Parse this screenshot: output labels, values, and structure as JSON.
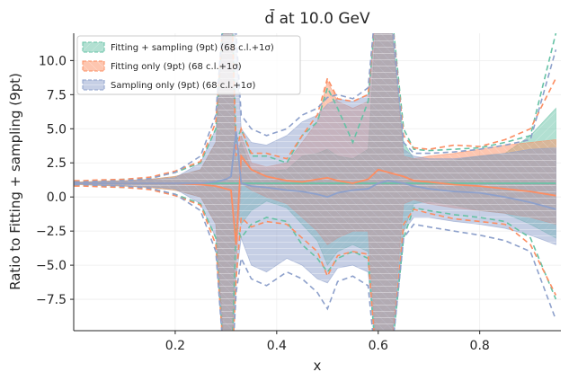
{
  "chart_data": {
    "type": "line",
    "title": "d̄ at 10.0 GeV",
    "xlabel": "x",
    "ylabel": "Ratio to Fitting + sampling (9pt)",
    "xlim": [
      0.0,
      0.96
    ],
    "ylim": [
      -9.8,
      12.0
    ],
    "xticks": [
      0.2,
      0.4,
      0.6,
      0.8
    ],
    "xtick_labels": [
      "0.2",
      "0.4",
      "0.6",
      "0.8"
    ],
    "yticks": [
      -7.5,
      -5.0,
      -2.5,
      0.0,
      2.5,
      5.0,
      7.5,
      10.0
    ],
    "ytick_labels": [
      "−7.5",
      "−5.0",
      "−2.5",
      "0.0",
      "2.5",
      "5.0",
      "7.5",
      "10.0"
    ],
    "grid": true,
    "legend_position": "top-left",
    "x": [
      0.001,
      0.02,
      0.05,
      0.1,
      0.15,
      0.2,
      0.25,
      0.28,
      0.3,
      0.31,
      0.32,
      0.33,
      0.35,
      0.38,
      0.42,
      0.45,
      0.48,
      0.5,
      0.52,
      0.55,
      0.58,
      0.6,
      0.62,
      0.65,
      0.67,
      0.7,
      0.75,
      0.8,
      0.85,
      0.9,
      0.95
    ],
    "series": [
      {
        "name": "Fitting + sampling (9pt) (68 c.l.+1σ)",
        "color": "#66c2a5",
        "central": [
          1.0,
          1.0,
          1.0,
          1.0,
          1.0,
          1.0,
          1.0,
          1.0,
          1.0,
          1.0,
          1.0,
          1.0,
          1.0,
          1.0,
          1.0,
          1.0,
          1.0,
          1.0,
          1.0,
          1.0,
          1.0,
          1.0,
          1.0,
          1.0,
          1.0,
          1.0,
          1.0,
          1.0,
          1.0,
          1.0,
          1.0
        ],
        "band_upper": [
          1.1,
          1.1,
          1.15,
          1.2,
          1.3,
          1.5,
          2.0,
          4.0,
          15.0,
          15.0,
          3.0,
          4.0,
          2.0,
          1.9,
          2.0,
          3.0,
          3.2,
          3.5,
          3.0,
          2.8,
          3.5,
          15.0,
          15.0,
          4.0,
          2.8,
          2.6,
          2.7,
          3.0,
          3.2,
          4.5,
          6.5
        ],
        "band_lower": [
          0.9,
          0.9,
          0.85,
          0.8,
          0.7,
          0.5,
          0.0,
          -2.0,
          -13.0,
          -13.0,
          -1.0,
          -2.0,
          -1.0,
          -0.3,
          -0.8,
          -2.0,
          -3.2,
          -5.0,
          -4.0,
          -3.5,
          -4.0,
          -13.0,
          -13.0,
          -2.5,
          -0.5,
          -0.3,
          -0.6,
          -1.0,
          -1.2,
          -2.0,
          -3.0
        ],
        "outer_upper": [
          1.15,
          1.15,
          1.2,
          1.3,
          1.4,
          1.8,
          2.5,
          5.0,
          16.0,
          16.0,
          4.0,
          5.0,
          3.0,
          3.0,
          2.5,
          4.5,
          5.5,
          8.0,
          6.5,
          4.0,
          7.0,
          16.0,
          16.0,
          5.0,
          3.5,
          3.4,
          3.5,
          3.6,
          4.0,
          4.5,
          12.0
        ],
        "outer_lower": [
          0.85,
          0.85,
          0.8,
          0.7,
          0.6,
          0.2,
          -0.5,
          -3.0,
          -14.0,
          -14.0,
          -2.0,
          -3.0,
          -2.0,
          -1.5,
          -1.8,
          -3.5,
          -4.5,
          -5.5,
          -4.5,
          -4.0,
          -4.5,
          -14.0,
          -14.0,
          -3.0,
          -0.8,
          -1.0,
          -1.3,
          -1.5,
          -1.8,
          -3.0,
          -7.5
        ]
      },
      {
        "name": "Fitting only (9pt) (68 c.l.+1σ)",
        "color": "#fc8d62",
        "central": [
          1.0,
          1.0,
          1.0,
          1.0,
          1.0,
          1.0,
          0.9,
          0.8,
          0.6,
          0.5,
          -3.5,
          3.0,
          2.0,
          1.5,
          1.2,
          1.1,
          1.3,
          1.4,
          1.2,
          1.0,
          1.3,
          2.0,
          1.8,
          1.5,
          1.2,
          1.1,
          0.9,
          0.8,
          0.6,
          0.4,
          0.1
        ],
        "band_upper": [
          1.1,
          1.1,
          1.15,
          1.2,
          1.3,
          1.5,
          2.0,
          4.0,
          15.0,
          15.0,
          2.0,
          4.5,
          2.5,
          2.2,
          2.5,
          4.0,
          5.5,
          8.5,
          7.0,
          6.5,
          7.0,
          15.0,
          15.0,
          3.0,
          2.8,
          3.0,
          3.2,
          3.5,
          3.8,
          4.0,
          4.2
        ],
        "band_lower": [
          0.9,
          0.9,
          0.85,
          0.8,
          0.7,
          0.5,
          0.0,
          -2.0,
          -13.0,
          -13.0,
          -5.0,
          1.0,
          0.5,
          0.0,
          -0.5,
          -1.5,
          -2.5,
          -3.5,
          -3.0,
          -2.5,
          -2.5,
          -13.0,
          -13.0,
          -0.5,
          -0.2,
          -0.5,
          -0.8,
          -1.0,
          -1.2,
          -1.5,
          -2.0
        ],
        "outer_upper": [
          1.2,
          1.2,
          1.25,
          1.3,
          1.45,
          1.9,
          2.6,
          5.5,
          16.0,
          16.0,
          3.0,
          5.0,
          3.2,
          3.2,
          2.8,
          4.5,
          6.0,
          8.7,
          7.2,
          7.0,
          7.5,
          16.0,
          16.0,
          4.5,
          3.6,
          3.5,
          3.8,
          3.7,
          4.2,
          5.0,
          8.7
        ],
        "outer_lower": [
          0.8,
          0.8,
          0.75,
          0.7,
          0.55,
          0.1,
          -0.6,
          -3.5,
          -14.0,
          -14.0,
          -6.0,
          -1.5,
          -2.2,
          -1.8,
          -2.0,
          -3.0,
          -4.0,
          -5.8,
          -4.3,
          -4.0,
          -4.2,
          -14.0,
          -14.0,
          -2.0,
          -0.9,
          -1.2,
          -1.6,
          -1.8,
          -2.0,
          -3.5,
          -7.2
        ]
      },
      {
        "name": "Sampling only (9pt) (68 c.l.+1σ)",
        "color": "#8da0cb",
        "central": [
          1.0,
          1.0,
          1.0,
          1.0,
          1.0,
          1.0,
          1.0,
          1.1,
          1.3,
          1.5,
          4.8,
          1.0,
          0.8,
          0.7,
          0.5,
          0.4,
          0.2,
          0.0,
          0.3,
          0.5,
          0.6,
          1.0,
          1.2,
          1.0,
          0.8,
          0.6,
          0.4,
          0.3,
          0.0,
          -0.4,
          -0.9
        ],
        "band_upper": [
          1.05,
          1.05,
          1.1,
          1.15,
          1.25,
          1.4,
          2.5,
          5.0,
          15.0,
          15.0,
          11.0,
          5.0,
          4.0,
          3.8,
          4.5,
          5.5,
          6.0,
          6.8,
          7.2,
          7.0,
          7.5,
          15.0,
          15.0,
          3.5,
          3.0,
          2.8,
          2.8,
          3.0,
          3.2,
          3.5,
          3.6
        ],
        "band_lower": [
          0.95,
          0.95,
          0.9,
          0.85,
          0.75,
          0.6,
          -0.5,
          -3.0,
          -13.0,
          -13.0,
          -6.0,
          -3.0,
          -5.0,
          -5.5,
          -4.5,
          -5.0,
          -6.0,
          -6.3,
          -5.2,
          -5.0,
          -5.5,
          -13.0,
          -13.0,
          -2.5,
          -1.5,
          -1.5,
          -1.8,
          -2.0,
          -2.3,
          -2.8,
          -3.5
        ],
        "outer_upper": [
          1.1,
          1.1,
          1.15,
          1.2,
          1.35,
          1.8,
          3.0,
          6.0,
          16.0,
          16.0,
          12.0,
          6.0,
          5.0,
          4.5,
          5.0,
          6.0,
          6.5,
          7.3,
          7.5,
          7.2,
          8.0,
          16.0,
          16.0,
          4.0,
          3.2,
          3.2,
          3.3,
          3.5,
          3.8,
          4.2,
          10.8
        ],
        "outer_lower": [
          0.9,
          0.9,
          0.85,
          0.8,
          0.65,
          0.2,
          -1.0,
          -4.0,
          -14.0,
          -14.0,
          -7.0,
          -4.5,
          -6.0,
          -6.5,
          -5.5,
          -6.0,
          -7.0,
          -8.2,
          -6.2,
          -5.8,
          -6.5,
          -14.0,
          -14.0,
          -3.0,
          -2.0,
          -2.2,
          -2.5,
          -2.8,
          -3.2,
          -4.0,
          -9.0
        ]
      }
    ]
  }
}
